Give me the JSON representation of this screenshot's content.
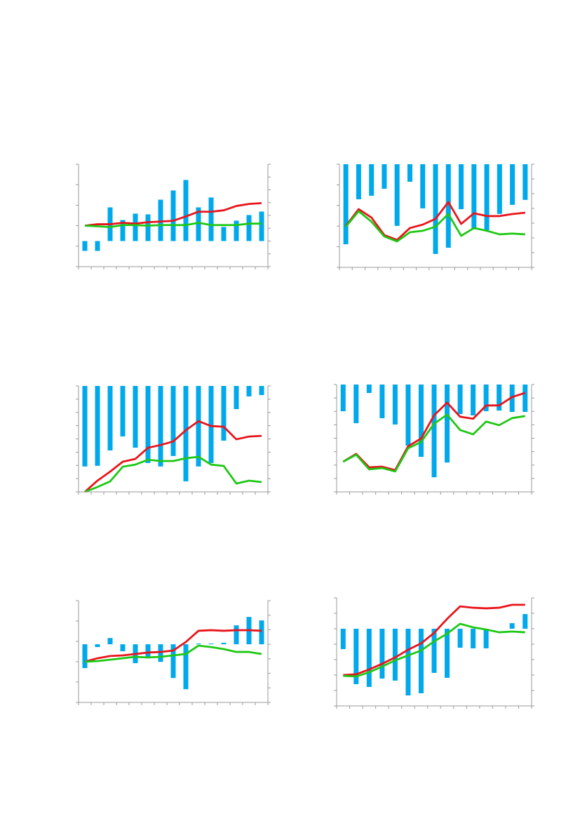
{
  "chart_data": [
    {
      "type": "combo",
      "categories": [
        null,
        null,
        null,
        null,
        null,
        null,
        null,
        null,
        null,
        null,
        null,
        null,
        null,
        null,
        null
      ],
      "ylim": [
        -2,
        3
      ],
      "yticks": [
        -2,
        -1,
        0,
        1,
        2,
        3
      ],
      "y2lim": [
        -2,
        6
      ],
      "y2ticks": [
        -2,
        -1,
        0,
        1,
        2,
        3,
        4,
        5,
        6
      ],
      "series": [
        {
          "type": "bar",
          "axis": "y2",
          "color": "#00a8ec",
          "values": [
            -0.77,
            -0.77,
            2.63,
            1.64,
            2.14,
            2.08,
            3.23,
            3.95,
            4.77,
            2.63,
            3.4,
            1.1,
            1.59,
            2.03,
            2.3
          ]
        },
        {
          "type": "line",
          "color": "#e8141b",
          "values": [
            0,
            0.07,
            0.07,
            0.14,
            0.1,
            0.17,
            0.2,
            0.24,
            0.45,
            0.68,
            0.68,
            0.75,
            0.96,
            1.06,
            1.1
          ]
        },
        {
          "type": "line",
          "color": "#1ec814",
          "values": [
            0,
            -0.03,
            -0.07,
            0.03,
            0.03,
            0,
            0.03,
            0.03,
            0.03,
            0.14,
            0.03,
            0.03,
            0.03,
            0.1,
            0.1
          ]
        }
      ]
    },
    {
      "type": "combo",
      "categories": [
        null,
        null,
        null,
        null,
        null,
        null,
        null,
        null,
        null,
        null,
        null,
        null,
        null,
        null,
        null
      ],
      "ylim": [
        -5,
        0
      ],
      "yticks": [
        -5,
        -4,
        -3,
        -2,
        -1,
        0
      ],
      "y2lim": [
        0,
        7
      ],
      "y2ticks": [
        0,
        1,
        2,
        3,
        4,
        5,
        6,
        7
      ],
      "series": [
        {
          "type": "bar",
          "color": "#00a8ec",
          "values": [
            -3.88,
            -1.7,
            -1.53,
            -1.19,
            -2.99,
            -0.85,
            -2.14,
            -4.35,
            -4.05,
            -2.18,
            -3.16,
            -3.2,
            -2.41,
            -1.97,
            -1.73
          ]
        },
        {
          "type": "line",
          "axis": "y2",
          "color": "#e8141b",
          "values": [
            2.81,
            3.95,
            3.38,
            2.19,
            1.86,
            2.67,
            2.9,
            3.29,
            4.43,
            2.95,
            3.67,
            3.48,
            3.48,
            3.62,
            3.71
          ]
        },
        {
          "type": "line",
          "axis": "y2",
          "color": "#1ec814",
          "values": [
            2.76,
            3.81,
            3.1,
            2.1,
            1.76,
            2.38,
            2.48,
            2.76,
            3.62,
            2.14,
            2.67,
            2.48,
            2.24,
            2.29,
            2.24
          ]
        }
      ]
    },
    {
      "type": "combo",
      "categories": [
        null,
        null,
        null,
        null,
        null,
        null,
        null,
        null,
        null,
        null,
        null,
        null,
        null,
        null,
        null
      ],
      "ylim": [
        -8,
        0
      ],
      "yticks": [
        -8,
        -7,
        -6,
        -5,
        -4,
        -3,
        -2,
        -1,
        0
      ],
      "y2lim": [
        0,
        8
      ],
      "y2ticks": [
        0,
        1,
        2,
        3,
        4,
        5,
        6,
        7,
        8
      ],
      "series": [
        {
          "type": "bar",
          "color": "#00a8ec",
          "values": [
            -6.08,
            -6.03,
            -4.87,
            -3.81,
            -4.66,
            -5.82,
            -6.08,
            -5.29,
            -7.2,
            -6.08,
            -5.82,
            -4.13,
            -1.75,
            -0.79,
            -0.69
          ]
        },
        {
          "type": "line",
          "axis": "y2",
          "color": "#e8141b",
          "values": [
            0,
            0.85,
            1.53,
            2.28,
            2.49,
            3.33,
            3.54,
            3.81,
            4.66,
            5.34,
            4.97,
            4.92,
            3.97,
            4.18,
            4.23
          ]
        },
        {
          "type": "line",
          "axis": "y2",
          "color": "#1ec814",
          "values": [
            0,
            0.37,
            0.79,
            1.9,
            2.06,
            2.43,
            2.33,
            2.33,
            2.54,
            2.65,
            2.06,
            1.96,
            0.63,
            0.85,
            0.74
          ]
        }
      ]
    },
    {
      "type": "combo",
      "categories": [
        null,
        null,
        null,
        null,
        null,
        null,
        null,
        null,
        null,
        null,
        null,
        null,
        null,
        null,
        null
      ],
      "ylim": [
        -8,
        0
      ],
      "yticks": [
        -8,
        -7,
        -6,
        -5,
        -4,
        -3,
        -2,
        -1,
        0
      ],
      "y2lim": [
        0,
        8
      ],
      "y2ticks": [
        0,
        1,
        2,
        3,
        4,
        5,
        6,
        7,
        8
      ],
      "series": [
        {
          "type": "bar",
          "color": "#00a8ec",
          "values": [
            -1.99,
            -2.88,
            -0.63,
            -2.51,
            -2.98,
            -4.55,
            -5.39,
            -6.91,
            -5.81,
            -2.2,
            -2.3,
            -1.99,
            -1.94,
            -2.04,
            -2.04
          ]
        },
        {
          "type": "line",
          "axis": "y2",
          "color": "#e8141b",
          "values": [
            2.25,
            2.83,
            1.83,
            1.88,
            1.62,
            3.4,
            3.98,
            5.71,
            6.65,
            5.6,
            5.45,
            6.44,
            6.44,
            7.07,
            7.38
          ]
        },
        {
          "type": "line",
          "axis": "y2",
          "color": "#1ec814",
          "values": [
            2.25,
            2.77,
            1.68,
            1.78,
            1.52,
            3.25,
            3.72,
            5.08,
            5.76,
            4.61,
            4.29,
            5.24,
            4.97,
            5.5,
            5.65
          ]
        }
      ]
    },
    {
      "type": "combo",
      "categories": [
        null,
        null,
        null,
        null,
        null,
        null,
        null,
        null,
        null,
        null,
        null,
        null,
        null,
        null,
        null
      ],
      "ylim": [
        -2,
        3
      ],
      "yticks": [
        -2,
        -1,
        0,
        1,
        2,
        3
      ],
      "y2lim": [
        -4,
        3
      ],
      "y2ticks": [
        -4,
        -3,
        -2,
        -1,
        0,
        1,
        2,
        3
      ],
      "series": [
        {
          "type": "bar",
          "axis": "y2",
          "color": "#00a8ec",
          "values": [
            -1.64,
            -0.19,
            0.43,
            -0.48,
            -1.3,
            -0.97,
            -1.21,
            -2.32,
            -3.09,
            0.05,
            0.05,
            0.1,
            1.3,
            1.88,
            1.64
          ]
        },
        {
          "type": "line",
          "color": "#e8141b",
          "values": [
            0,
            0.17,
            0.28,
            0.31,
            0.38,
            0.45,
            0.48,
            0.55,
            0.97,
            1.52,
            1.55,
            1.52,
            1.55,
            1.55,
            1.52
          ]
        },
        {
          "type": "line",
          "color": "#1ec814",
          "values": [
            0,
            0.03,
            0.1,
            0.17,
            0.24,
            0.21,
            0.24,
            0.31,
            0.38,
            0.79,
            0.72,
            0.62,
            0.48,
            0.48,
            0.38
          ]
        }
      ]
    },
    {
      "type": "combo",
      "categories": [
        null,
        null,
        null,
        null,
        null,
        null,
        null,
        null,
        null,
        null,
        null,
        null,
        null,
        null,
        null
      ],
      "ylim": [
        -5,
        2
      ],
      "yticks": [
        -5,
        -4,
        -3,
        -2,
        -1,
        0,
        1,
        2
      ],
      "y2lim": [
        0,
        7
      ],
      "y2ticks": [
        0,
        1,
        2,
        3,
        4,
        5,
        6,
        7
      ],
      "series": [
        {
          "type": "bar",
          "color": "#00a8ec",
          "values": [
            -1.32,
            -3.59,
            -3.77,
            -3.23,
            -3.36,
            -4.32,
            -4.18,
            -2.86,
            -3.18,
            -1.23,
            -1.27,
            -1.27,
            0,
            0.36,
            0.95
          ]
        },
        {
          "type": "line",
          "axis": "y2",
          "color": "#e8141b",
          "values": [
            2,
            2.05,
            2.36,
            2.73,
            3.14,
            3.64,
            4.05,
            4.73,
            5.64,
            6.45,
            6.36,
            6.32,
            6.36,
            6.55,
            6.55
          ]
        },
        {
          "type": "line",
          "axis": "y2",
          "color": "#1ec814",
          "values": [
            1.95,
            1.91,
            2.18,
            2.55,
            2.95,
            3.27,
            3.59,
            4.18,
            4.68,
            5.32,
            5.09,
            4.95,
            4.77,
            4.82,
            4.77
          ]
        }
      ]
    }
  ]
}
